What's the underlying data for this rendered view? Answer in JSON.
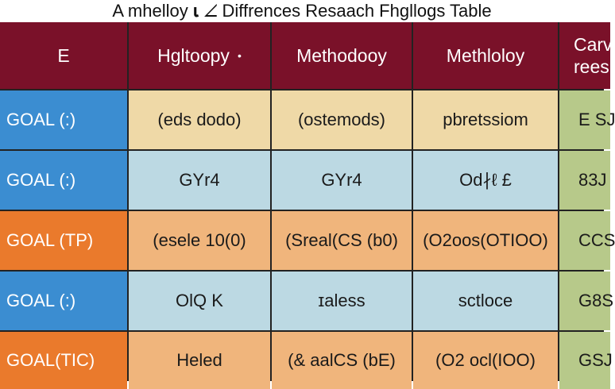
{
  "title": "A mhelloy 𝛊 ∠ Diffrences Resaach Fhgllogs Table",
  "header": {
    "col0": "E",
    "col1": "Hgltoopy",
    "col1_dot": "•",
    "col2": "Methodooy",
    "col3": "Methloloy",
    "col4_line1": "Carv",
    "col4_line2": "rees"
  },
  "rows": [
    {
      "goal": "GOAL (:)",
      "c1": "(eds dodo)",
      "c2": "(ostemods)",
      "c3": "pbretssiom",
      "c4": "E SJ"
    },
    {
      "goal": "GOAL (:)",
      "c1": "GYr4",
      "c2": "GYr4",
      "c3": "Od∤ℓ £",
      "c4": "83J"
    },
    {
      "goal": "GOAL (TP)",
      "c1": "(esele 10(0)",
      "c2": "(Sreal(CS (b0)",
      "c3": "(O2oos(OTIOO)",
      "c4": "CCS"
    },
    {
      "goal": "GOAL (:)",
      "c1": "OlQ K",
      "c2": "ɪaless",
      "c3": "sctloce",
      "c4": "G8S"
    },
    {
      "goal": "GOAL(TIC)",
      "c1": "Heled",
      "c2": "(& aalCS (bE)",
      "c3": "(O2 ocl(IOO)",
      "c4": "GSJ"
    }
  ],
  "colors": {
    "header": "#7a1129",
    "goal_blue": "#3b8dd1",
    "goal_orange": "#ea7a2c",
    "tan": "#efd9a7",
    "light_blue": "#bcd9e3",
    "peach": "#f0b57c",
    "green": "#b7c98a"
  }
}
